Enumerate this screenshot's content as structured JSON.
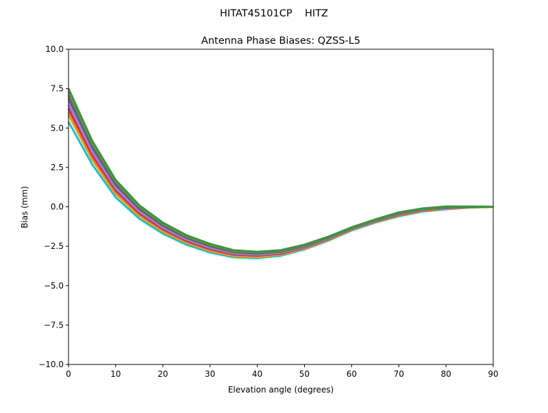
{
  "chart_data": {
    "type": "line",
    "suptitle": "HITAT45101CP    HITZ",
    "title": "Antenna Phase Biases: QZSS-L5",
    "xlabel": "Elevation angle (degrees)",
    "ylabel": "Bias (mm)",
    "xlim": [
      0,
      90
    ],
    "ylim": [
      -10,
      10
    ],
    "grid": false,
    "xticks": [
      0,
      10,
      20,
      30,
      40,
      50,
      60,
      70,
      80,
      90
    ],
    "xtick_labels": [
      "0",
      "10",
      "20",
      "30",
      "40",
      "50",
      "60",
      "70",
      "80",
      "90"
    ],
    "yticks": [
      10,
      7.5,
      5,
      2.5,
      0,
      -2.5,
      -5,
      -7.5,
      -10
    ],
    "ytick_labels": [
      "10.0",
      "7.5",
      "5.0",
      "2.5",
      "0.0",
      "−2.5",
      "−5.0",
      "−7.5",
      "−10.0"
    ],
    "x": [
      0,
      5,
      10,
      15,
      20,
      25,
      30,
      35,
      40,
      45,
      50,
      55,
      60,
      65,
      70,
      75,
      80,
      85,
      90
    ],
    "series": [
      {
        "color": "#17becf",
        "values": [
          5.4,
          2.7,
          0.6,
          -0.75,
          -1.7,
          -2.4,
          -2.9,
          -3.2,
          -3.25,
          -3.1,
          -2.7,
          -2.15,
          -1.5,
          -1.0,
          -0.6,
          -0.3,
          -0.15,
          -0.05,
          0
        ]
      },
      {
        "color": "#bcbd22",
        "values": [
          5.82,
          3.0,
          0.82,
          -0.58,
          -1.56,
          -2.28,
          -2.79,
          -3.11,
          -3.17,
          -3.03,
          -2.64,
          -2.1,
          -1.46,
          -0.96,
          -0.55,
          -0.26,
          -0.12,
          -0.04,
          0
        ]
      },
      {
        "color": "#ff7f0e",
        "values": [
          6.0,
          3.1,
          0.9,
          -0.5,
          -1.5,
          -2.22,
          -2.74,
          -3.07,
          -3.13,
          -3.0,
          -2.61,
          -2.08,
          -1.44,
          -0.94,
          -0.53,
          -0.24,
          -0.1,
          -0.03,
          0
        ]
      },
      {
        "color": "#d62728",
        "values": [
          6.24,
          3.3,
          1.04,
          -0.41,
          -1.42,
          -2.16,
          -2.68,
          -3.02,
          -3.09,
          -2.96,
          -2.58,
          -2.05,
          -1.42,
          -0.92,
          -0.5,
          -0.22,
          -0.08,
          -0.02,
          0
        ]
      },
      {
        "color": "#9467bd",
        "values": [
          6.45,
          3.45,
          1.15,
          -0.32,
          -1.35,
          -2.1,
          -2.62,
          -2.97,
          -3.05,
          -2.92,
          -2.55,
          -2.02,
          -1.4,
          -0.9,
          -0.47,
          -0.2,
          -0.06,
          -0.01,
          0
        ]
      },
      {
        "color": "#e377c2",
        "values": [
          6.66,
          3.6,
          1.26,
          -0.24,
          -1.28,
          -2.04,
          -2.57,
          -2.93,
          -3.01,
          -2.89,
          -2.52,
          -2.0,
          -1.38,
          -0.88,
          -0.45,
          -0.18,
          -0.05,
          -0.01,
          0
        ]
      },
      {
        "color": "#1f77b4",
        "values": [
          6.87,
          3.75,
          1.37,
          -0.15,
          -1.21,
          -1.98,
          -2.51,
          -2.88,
          -2.97,
          -2.85,
          -2.49,
          -1.97,
          -1.36,
          -0.86,
          -0.42,
          -0.16,
          -0.03,
          0.0,
          0
        ]
      },
      {
        "color": "#8c564b",
        "values": [
          7.08,
          3.9,
          1.48,
          -0.07,
          -1.14,
          -1.92,
          -2.46,
          -2.84,
          -2.93,
          -2.82,
          -2.46,
          -1.95,
          -1.34,
          -0.84,
          -0.4,
          -0.14,
          -0.01,
          0.01,
          0
        ]
      },
      {
        "color": "#7f7f7f",
        "values": [
          7.3,
          4.05,
          1.6,
          0.02,
          -1.07,
          -1.86,
          -2.4,
          -2.8,
          -2.89,
          -2.78,
          -2.43,
          -1.92,
          -1.32,
          -0.82,
          -0.37,
          -0.12,
          0.01,
          0.02,
          0
        ]
      },
      {
        "color": "#2ca02c",
        "values": [
          7.5,
          4.2,
          1.7,
          0.1,
          -1.0,
          -1.8,
          -2.35,
          -2.75,
          -2.85,
          -2.75,
          -2.4,
          -1.9,
          -1.3,
          -0.8,
          -0.35,
          -0.1,
          0.02,
          0.02,
          0
        ]
      }
    ]
  }
}
